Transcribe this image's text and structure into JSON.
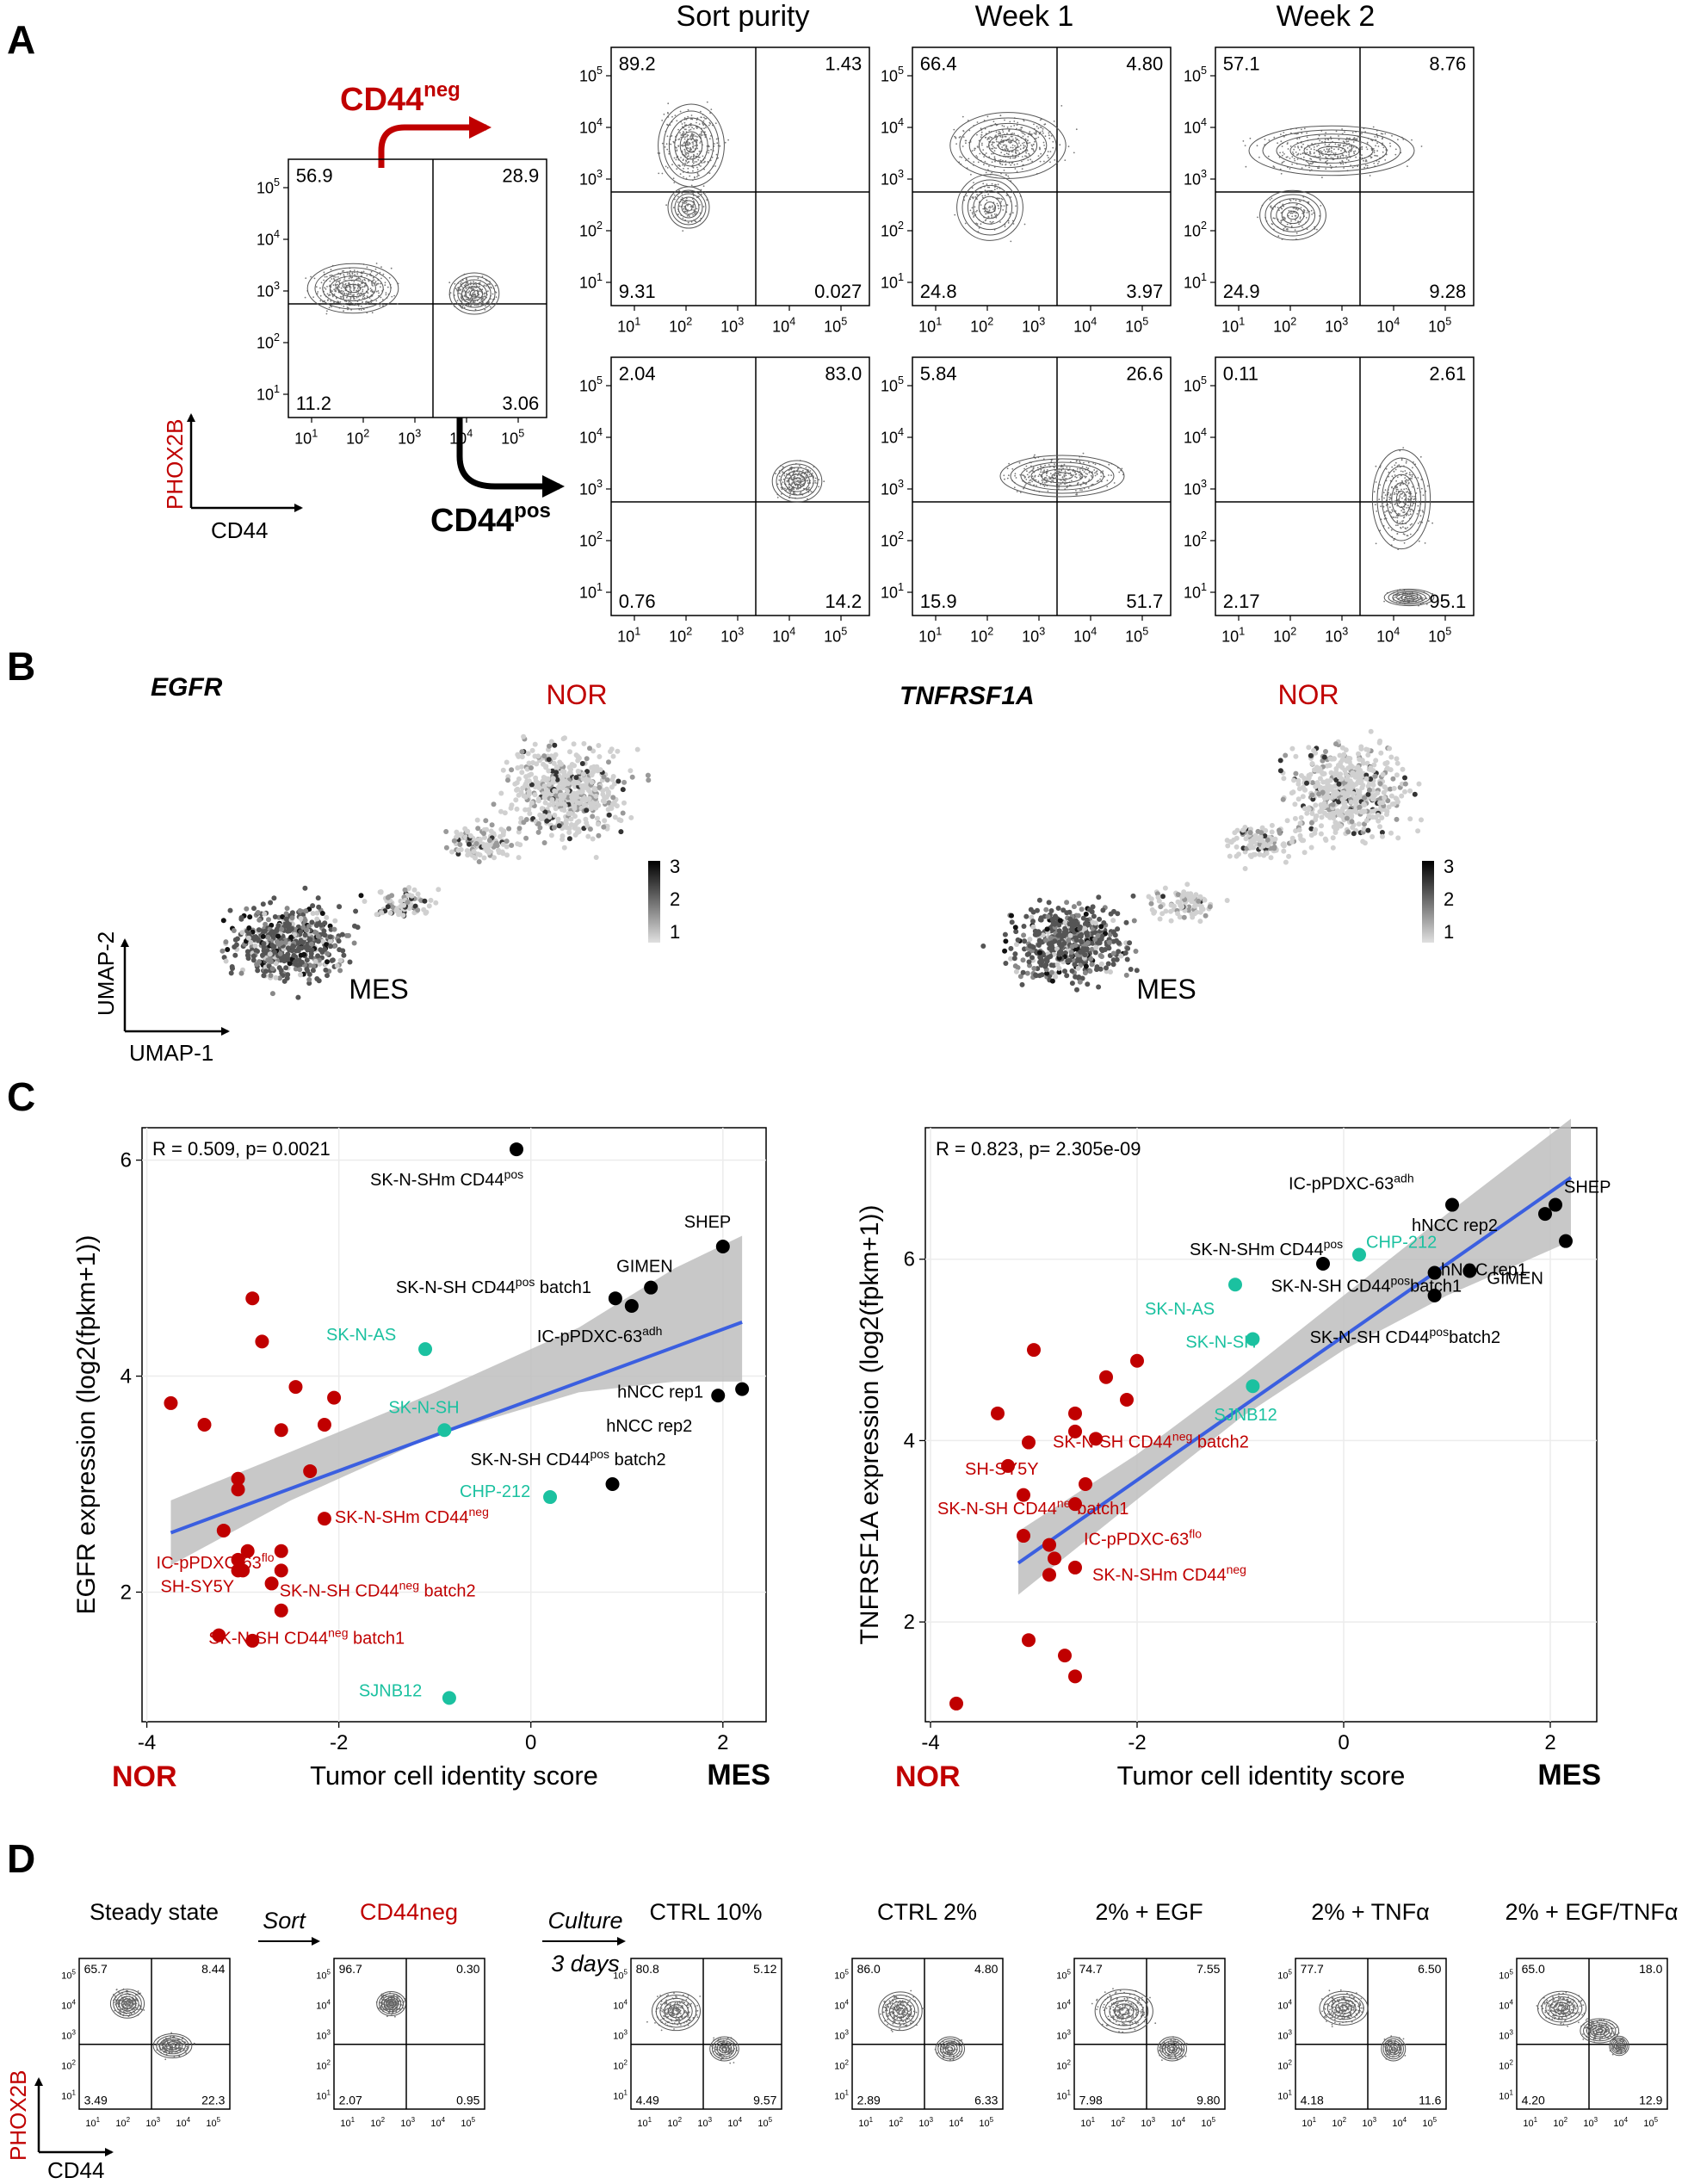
{
  "colors": {
    "red": "#C00000",
    "teal": "#1BC1A0",
    "black": "#000000",
    "trend": "#3B5FE0",
    "band": "#BEBEBE",
    "contour": "#444444"
  },
  "panels": {
    "a": "A",
    "b": "B",
    "c": "C",
    "d": "D"
  },
  "panel_a": {
    "col_titles": [
      "Sort purity",
      "Week 1",
      "Week 2"
    ],
    "neg_label": "CD44",
    "neg_sup": "neg",
    "pos_label": "CD44",
    "pos_sup": "pos",
    "x_axis": "CD44",
    "y_axis": "PHOX2B",
    "ticks": [
      "10",
      "10",
      "10",
      "10",
      "10"
    ],
    "tick_exp": [
      "1",
      "2",
      "3",
      "4",
      "5"
    ],
    "main_quad": [
      "56.9",
      "28.9",
      "11.2",
      "3.06"
    ],
    "top_quads": [
      [
        "89.2",
        "1.43",
        "9.31",
        "0.027"
      ],
      [
        "66.4",
        "4.80",
        "24.8",
        "3.97"
      ],
      [
        "57.1",
        "8.76",
        "24.9",
        "9.28"
      ]
    ],
    "bottom_quads": [
      [
        "2.04",
        "83.0",
        "0.76",
        "14.2"
      ],
      [
        "5.84",
        "26.6",
        "15.9",
        "51.7"
      ],
      [
        "0.11",
        "2.61",
        "2.17",
        "95.1"
      ]
    ]
  },
  "panel_b": {
    "plots": [
      {
        "gene": "EGFR",
        "nor": "NOR",
        "mes": "MES",
        "scale": [
          "3",
          "2",
          "1"
        ]
      },
      {
        "gene": "TNFRSF1A",
        "nor": "NOR",
        "mes": "MES",
        "scale": [
          "3",
          "2",
          "1"
        ]
      }
    ],
    "x_axis": "UMAP-1",
    "y_axis": "UMAP-2"
  },
  "chart_data": [
    {
      "type": "scatter",
      "title": "R = 0.509, p= 0.0021",
      "xlabel": "Tumor cell identity score",
      "ylabel": "EGFR expression (log2(fpkm+1))",
      "xlim": [
        -4.05,
        2.45
      ],
      "ylim": [
        0.8,
        6.3
      ],
      "xticks": [
        -4,
        -2,
        0,
        2
      ],
      "yticks": [
        2,
        4,
        6
      ],
      "left_end_label": "NOR",
      "right_end_label": "MES",
      "trend": [
        [
          -3.75,
          2.55
        ],
        [
          2.2,
          4.5
        ]
      ],
      "band": [
        [
          -3.75,
          2.25,
          2.85
        ],
        [
          -2.5,
          2.85,
          3.3
        ],
        [
          -1,
          3.45,
          3.85
        ],
        [
          0.5,
          3.85,
          4.45
        ],
        [
          1.5,
          3.95,
          5.0
        ],
        [
          2.2,
          3.95,
          5.3
        ]
      ],
      "points": [
        {
          "x": -0.15,
          "y": 6.1,
          "g": "black",
          "label": "SK-N-SHm CD44",
          "sup": "pos"
        },
        {
          "x": 2.0,
          "y": 5.2,
          "g": "black",
          "label": "SHEP"
        },
        {
          "x": 0.88,
          "y": 4.72,
          "g": "black",
          "label": "SK-N-SH CD44",
          "sup": "pos",
          "tail": " batch1"
        },
        {
          "x": 1.05,
          "y": 4.65,
          "g": "black",
          "label": "IC-pPDXC-63",
          "sup": "adh"
        },
        {
          "x": 1.25,
          "y": 4.82,
          "g": "black",
          "label": "GIMEN"
        },
        {
          "x": 1.95,
          "y": 3.82,
          "g": "black",
          "label": "hNCC rep2"
        },
        {
          "x": 2.2,
          "y": 3.88,
          "g": "black",
          "label": "hNCC rep1"
        },
        {
          "x": 0.85,
          "y": 3.0,
          "g": "black",
          "label": "SK-N-SH CD44",
          "sup": "pos",
          "tail": " batch2"
        },
        {
          "x": -1.1,
          "y": 4.25,
          "g": "teal",
          "label": "SK-N-AS"
        },
        {
          "x": -0.9,
          "y": 3.5,
          "g": "teal",
          "label": "SK-N-SH"
        },
        {
          "x": 0.2,
          "y": 2.88,
          "g": "teal",
          "label": "CHP-212"
        },
        {
          "x": -0.85,
          "y": 1.02,
          "g": "teal",
          "label": "SJNB12"
        },
        {
          "x": -2.15,
          "y": 2.68,
          "g": "red",
          "label": "SK-N-SHm CD44",
          "sup": "neg"
        },
        {
          "x": -3.05,
          "y": 2.3,
          "g": "red",
          "label": "IC-pPDXC-63",
          "sup": "flo"
        },
        {
          "x": -3.05,
          "y": 2.2,
          "g": "red",
          "label": "SH-SY5Y"
        },
        {
          "x": -2.6,
          "y": 2.2,
          "g": "red",
          "label": "SK-N-SH CD44",
          "sup": "neg",
          "tail": " batch2"
        },
        {
          "x": -3.25,
          "y": 1.6,
          "g": "red",
          "label": "SK-N-SH CD44",
          "sup": "neg",
          "tail": " batch1"
        },
        {
          "x": -3.75,
          "y": 3.75,
          "g": "red"
        },
        {
          "x": -3.4,
          "y": 3.55,
          "g": "red"
        },
        {
          "x": -3.05,
          "y": 3.05,
          "g": "red"
        },
        {
          "x": -3.05,
          "y": 2.95,
          "g": "red"
        },
        {
          "x": -3.2,
          "y": 2.57,
          "g": "red"
        },
        {
          "x": -2.9,
          "y": 4.72,
          "g": "red"
        },
        {
          "x": -2.8,
          "y": 4.32,
          "g": "red"
        },
        {
          "x": -2.45,
          "y": 3.9,
          "g": "red"
        },
        {
          "x": -2.6,
          "y": 3.5,
          "g": "red"
        },
        {
          "x": -2.05,
          "y": 3.8,
          "g": "red"
        },
        {
          "x": -2.15,
          "y": 3.55,
          "g": "red"
        },
        {
          "x": -2.3,
          "y": 3.12,
          "g": "red"
        },
        {
          "x": -2.6,
          "y": 2.38,
          "g": "red"
        },
        {
          "x": -2.7,
          "y": 2.08,
          "g": "red"
        },
        {
          "x": -2.6,
          "y": 1.83,
          "g": "red"
        },
        {
          "x": -3.0,
          "y": 2.2,
          "g": "red"
        },
        {
          "x": -2.95,
          "y": 2.38,
          "g": "red"
        },
        {
          "x": -2.9,
          "y": 1.55,
          "g": "red"
        }
      ]
    },
    {
      "type": "scatter",
      "title": "R = 0.823, p= 2.305e-09",
      "xlabel": "Tumor cell identity score",
      "ylabel": "TNFRSF1A expression (log2(fpkm+1))",
      "xlim": [
        -4.05,
        2.45
      ],
      "ylim": [
        0.9,
        7.45
      ],
      "xticks": [
        -4,
        -2,
        0,
        2
      ],
      "yticks": [
        2,
        4,
        6
      ],
      "left_end_label": "NOR",
      "right_end_label": "MES",
      "trend": [
        [
          -3.15,
          2.65
        ],
        [
          2.2,
          6.9
        ]
      ],
      "band": [
        [
          -3.15,
          2.3,
          3.0
        ],
        [
          -2,
          3.35,
          3.85
        ],
        [
          -1,
          4.25,
          4.7
        ],
        [
          0,
          5.0,
          5.6
        ],
        [
          1,
          5.6,
          6.5
        ],
        [
          2.2,
          6.2,
          7.55
        ]
      ],
      "points": [
        {
          "x": 1.05,
          "y": 6.6,
          "g": "black",
          "label": "IC-pPDXC-63",
          "sup": "adh"
        },
        {
          "x": 2.05,
          "y": 6.6,
          "g": "black",
          "label": "SHEP"
        },
        {
          "x": 1.95,
          "y": 6.5,
          "g": "black",
          "label": "hNCC rep2"
        },
        {
          "x": 2.15,
          "y": 6.2,
          "g": "black",
          "label": "hNCC rep1"
        },
        {
          "x": -0.2,
          "y": 5.95,
          "g": "black",
          "label": "SK-N-SHm CD44",
          "sup": "pos"
        },
        {
          "x": 0.88,
          "y": 5.85,
          "g": "black",
          "label": "SK-N-SH CD44",
          "sup": "pos",
          "tail": "batch1"
        },
        {
          "x": 0.88,
          "y": 5.6,
          "g": "black",
          "label": "SK-N-SH CD44",
          "sup": "pos",
          "tail": "batch2"
        },
        {
          "x": 1.22,
          "y": 5.87,
          "g": "black",
          "label": "GIMEN"
        },
        {
          "x": 0.15,
          "y": 6.05,
          "g": "teal",
          "label": "CHP-212"
        },
        {
          "x": -1.05,
          "y": 5.72,
          "g": "teal",
          "label": "SK-N-AS"
        },
        {
          "x": -0.88,
          "y": 5.12,
          "g": "teal",
          "label": "SK-N-SH"
        },
        {
          "x": -0.88,
          "y": 4.6,
          "g": "teal",
          "label": "SJNB12"
        },
        {
          "x": -2.4,
          "y": 4.02,
          "g": "red",
          "label": "SK-N-SH CD44",
          "sup": "neg",
          "tail": " batch2"
        },
        {
          "x": -3.25,
          "y": 3.72,
          "g": "red",
          "label": "SH-SY5Y"
        },
        {
          "x": -2.85,
          "y": 2.85,
          "g": "red",
          "label": "IC-pPDXC-63",
          "sup": "flo"
        },
        {
          "x": -2.6,
          "y": 2.6,
          "g": "red",
          "label": "SK-N-SHm CD44",
          "sup": "neg"
        },
        {
          "x": -3.1,
          "y": 2.95,
          "g": "red",
          "label": "SK-N-SH CD44",
          "sup": "neg",
          "tail": "batch1"
        },
        {
          "x": -3.75,
          "y": 1.1,
          "g": "red"
        },
        {
          "x": -3.35,
          "y": 4.3,
          "g": "red"
        },
        {
          "x": -3.05,
          "y": 3.98,
          "g": "red"
        },
        {
          "x": -3.1,
          "y": 3.4,
          "g": "red"
        },
        {
          "x": -3.0,
          "y": 5.0,
          "g": "red"
        },
        {
          "x": -3.05,
          "y": 1.8,
          "g": "red"
        },
        {
          "x": -2.8,
          "y": 2.7,
          "g": "red"
        },
        {
          "x": -2.85,
          "y": 2.52,
          "g": "red"
        },
        {
          "x": -2.7,
          "y": 1.63,
          "g": "red"
        },
        {
          "x": -2.6,
          "y": 1.4,
          "g": "red"
        },
        {
          "x": -2.6,
          "y": 4.3,
          "g": "red"
        },
        {
          "x": -2.6,
          "y": 4.1,
          "g": "red"
        },
        {
          "x": -2.6,
          "y": 3.3,
          "g": "red"
        },
        {
          "x": -2.3,
          "y": 4.7,
          "g": "red"
        },
        {
          "x": -2.1,
          "y": 4.45,
          "g": "red"
        },
        {
          "x": -2.0,
          "y": 4.88,
          "g": "red"
        },
        {
          "x": -2.5,
          "y": 3.52,
          "g": "red"
        }
      ]
    }
  ],
  "panel_d": {
    "titles": [
      "Steady state",
      "CD44neg",
      "CTRL 10%",
      "CTRL 2%",
      "2% + EGF",
      "2% + TNFα",
      "2% + EGF/TNFα"
    ],
    "arrow_labels": [
      "Sort",
      "Culture",
      "3 days"
    ],
    "x_axis": "CD44",
    "y_axis": "PHOX2B",
    "quads": [
      [
        "65.7",
        "8.44",
        "3.49",
        "22.3"
      ],
      [
        "96.7",
        "0.30",
        "2.07",
        "0.95"
      ],
      [
        "80.8",
        "5.12",
        "4.49",
        "9.57"
      ],
      [
        "86.0",
        "4.80",
        "2.89",
        "6.33"
      ],
      [
        "74.7",
        "7.55",
        "7.98",
        "9.80"
      ],
      [
        "77.7",
        "6.50",
        "4.18",
        "11.6"
      ],
      [
        "65.0",
        "18.0",
        "4.20",
        "12.9"
      ]
    ]
  }
}
